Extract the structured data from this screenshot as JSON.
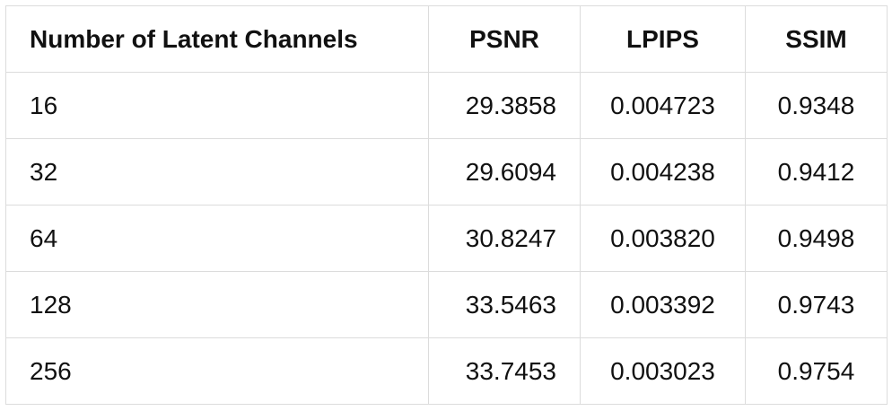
{
  "table": {
    "headers": [
      "Number of Latent Channels",
      "PSNR",
      "LPIPS",
      "SSIM"
    ],
    "rows": [
      [
        "16",
        "29.3858",
        "0.004723",
        "0.9348"
      ],
      [
        "32",
        "29.6094",
        "0.004238",
        "0.9412"
      ],
      [
        "64",
        "30.8247",
        "0.003820",
        "0.9498"
      ],
      [
        "128",
        "33.5463",
        "0.003392",
        "0.9743"
      ],
      [
        "256",
        "33.7453",
        "0.003023",
        "0.9754"
      ]
    ]
  }
}
